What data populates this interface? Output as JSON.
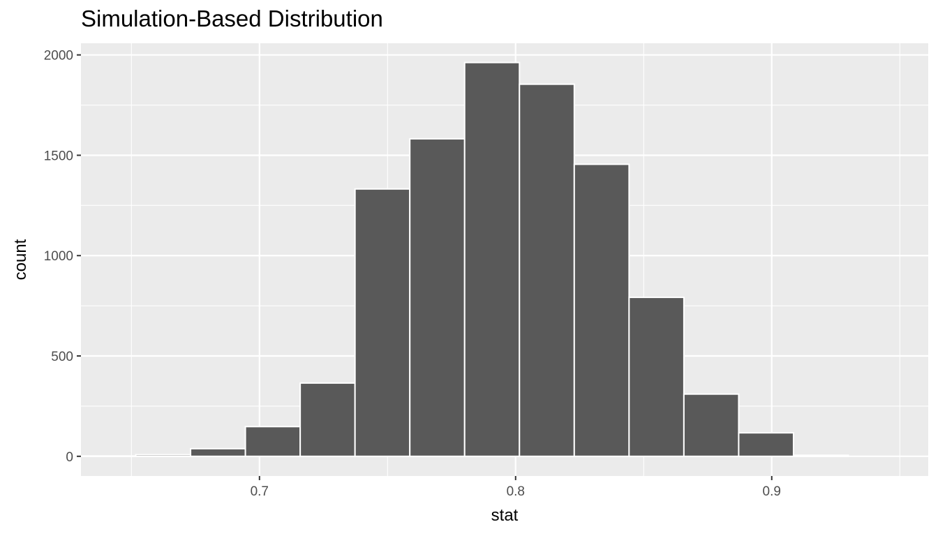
{
  "chart_data": {
    "type": "bar",
    "title": "Simulation-Based Distribution",
    "xlabel": "stat",
    "ylabel": "count",
    "xlim": [
      0.6303,
      0.9611
    ],
    "ylim": [
      -98,
      2058
    ],
    "x_ticks": [
      0.7,
      0.8,
      0.9
    ],
    "x_tick_labels": [
      "0.7",
      "0.8",
      "0.9"
    ],
    "y_ticks": [
      0,
      500,
      1000,
      1500,
      2000
    ],
    "y_tick_labels": [
      "0",
      "500",
      "1000",
      "1500",
      "2000"
    ],
    "bin_width": 0.0214,
    "bins": [
      {
        "x": 0.641,
        "count": 2
      },
      {
        "x": 0.6624,
        "count": 8
      },
      {
        "x": 0.6838,
        "count": 38
      },
      {
        "x": 0.7052,
        "count": 148
      },
      {
        "x": 0.7266,
        "count": 365
      },
      {
        "x": 0.748,
        "count": 1332
      },
      {
        "x": 0.7694,
        "count": 1582
      },
      {
        "x": 0.7908,
        "count": 1962
      },
      {
        "x": 0.8122,
        "count": 1854
      },
      {
        "x": 0.8336,
        "count": 1455
      },
      {
        "x": 0.855,
        "count": 792
      },
      {
        "x": 0.8764,
        "count": 310
      },
      {
        "x": 0.8978,
        "count": 117
      },
      {
        "x": 0.9192,
        "count": 5
      }
    ],
    "colors": {
      "panel": "#ebebeb",
      "grid": "#ffffff",
      "bar_fill": "#595959",
      "bar_stroke": "#ffffff",
      "tick": "#333333"
    },
    "grid": true,
    "legend": "none"
  }
}
